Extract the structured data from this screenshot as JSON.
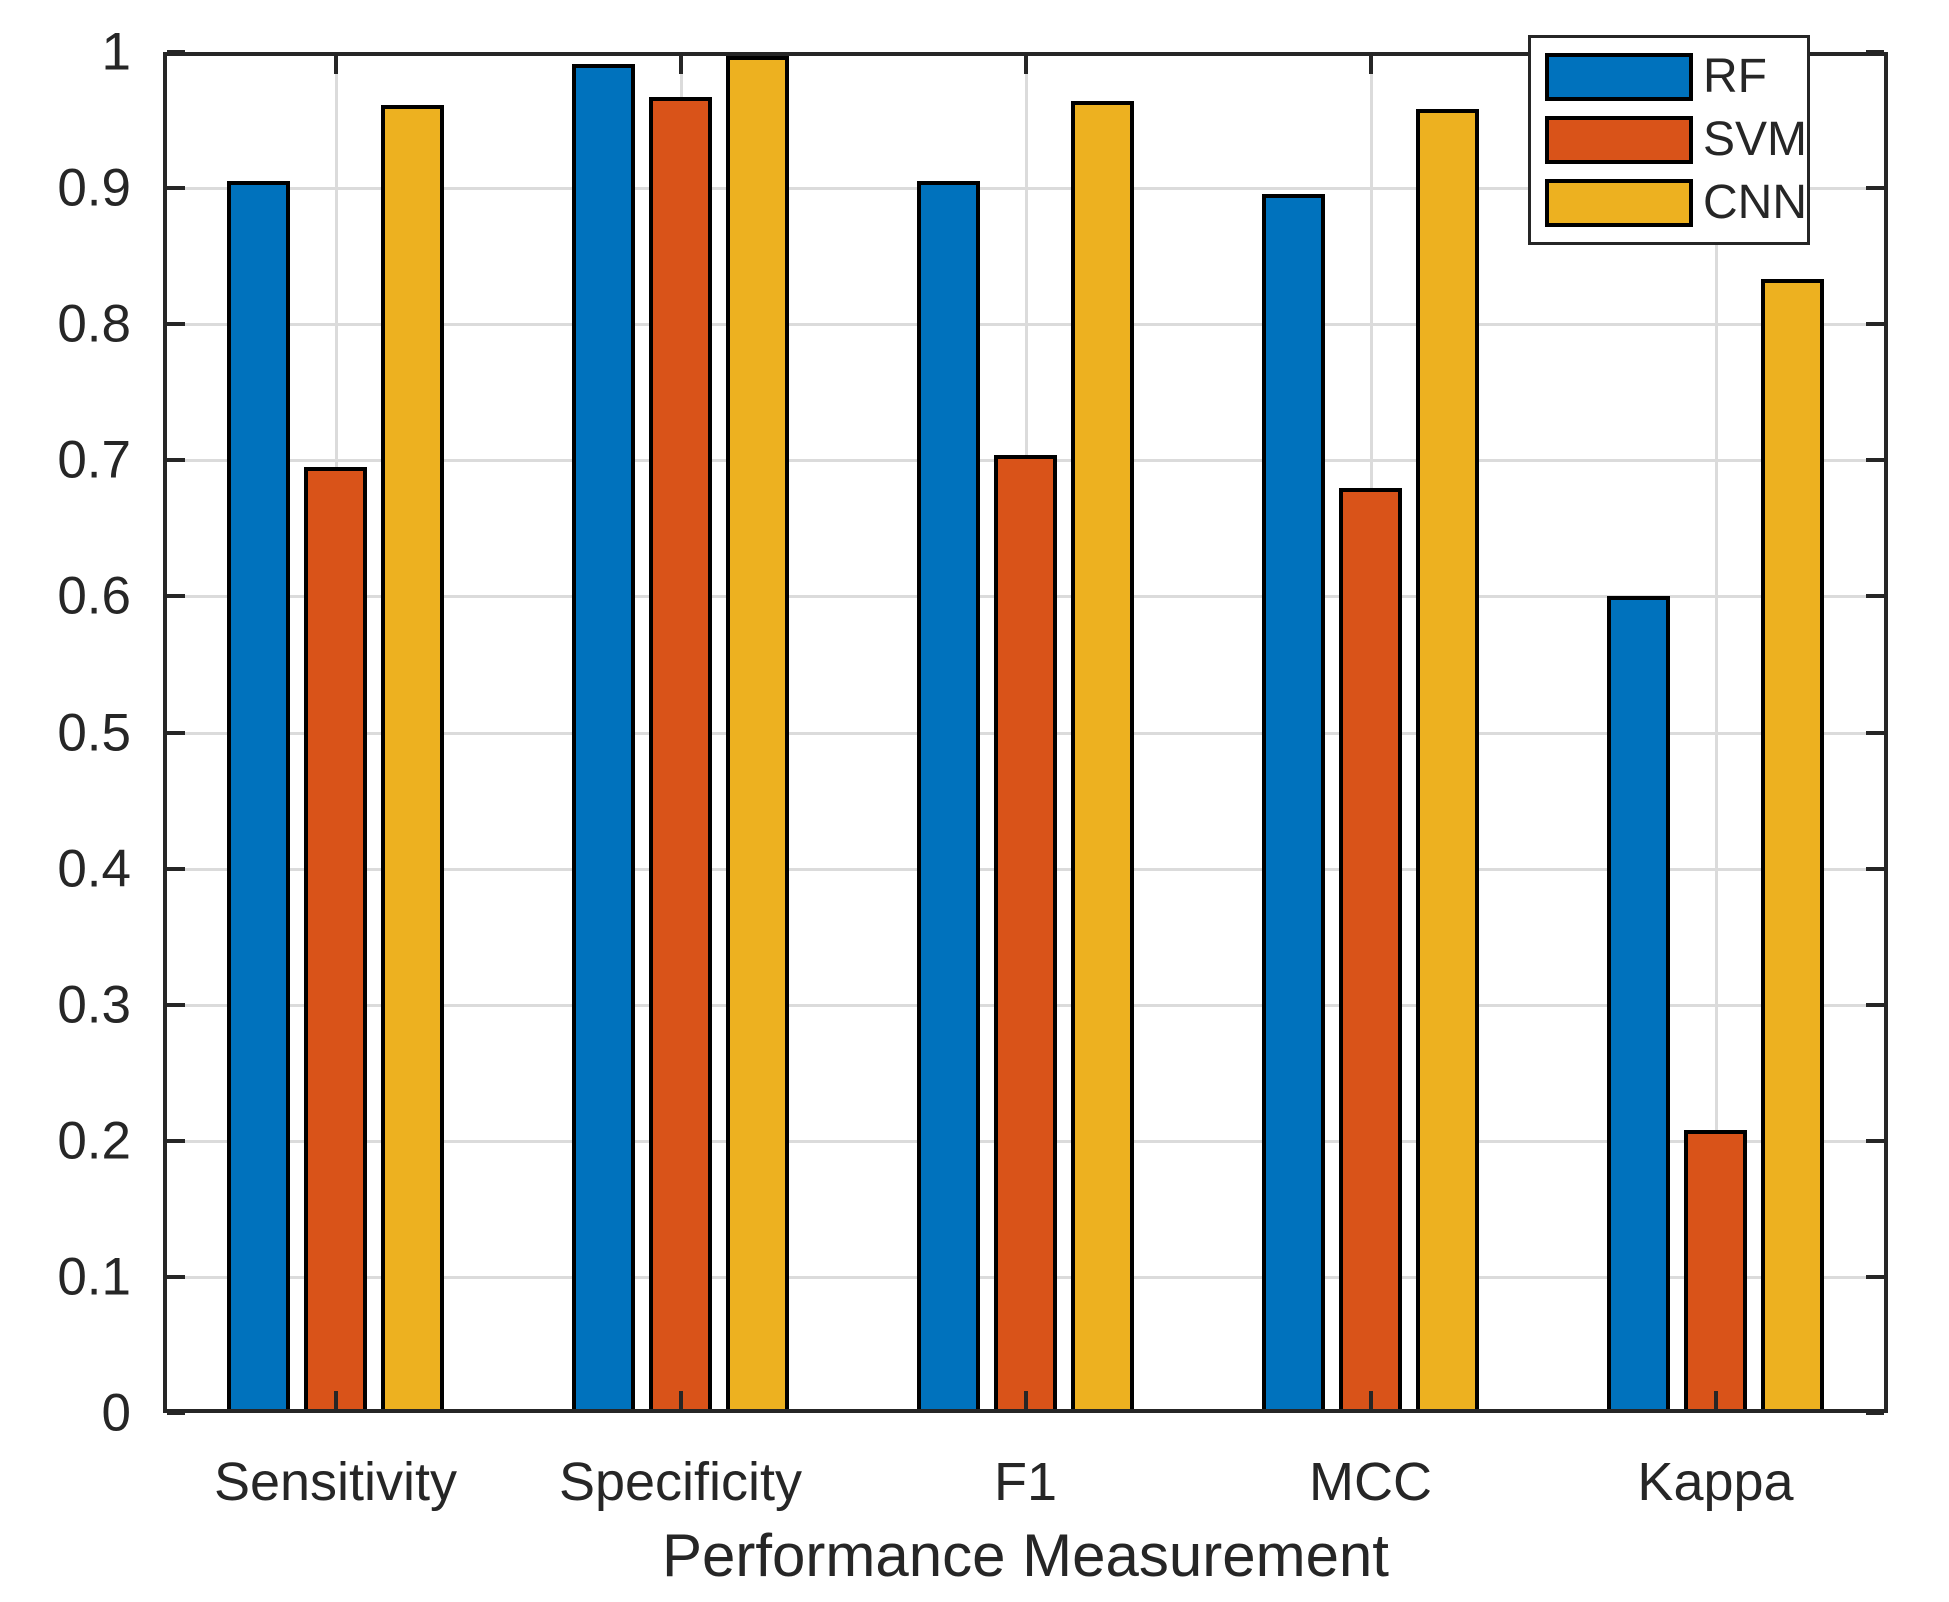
{
  "chart_data": {
    "type": "bar",
    "title": "",
    "xlabel": "Performance Measurement",
    "ylabel": "",
    "categories": [
      "Sensitivity",
      "Specificity",
      "F1",
      "MCC",
      "Kappa"
    ],
    "series": [
      {
        "name": "RF",
        "color": "#0072BD",
        "values": [
          0.905,
          0.991,
          0.905,
          0.896,
          0.6
        ]
      },
      {
        "name": "SVM",
        "color": "#D95319",
        "values": [
          0.695,
          0.967,
          0.704,
          0.68,
          0.208
        ]
      },
      {
        "name": "CNN",
        "color": "#EDB120",
        "values": [
          0.961,
          0.997,
          0.964,
          0.958,
          0.833
        ]
      }
    ],
    "ylim": [
      0,
      1
    ],
    "ytick_step": 0.1,
    "ytick_labels": [
      "0",
      "0.1",
      "0.2",
      "0.3",
      "0.4",
      "0.5",
      "0.6",
      "0.7",
      "0.8",
      "0.9",
      "1"
    ],
    "grid": true,
    "legend_position": "top-right",
    "legend_entries": [
      "RF",
      "SVM",
      "CNN"
    ],
    "colors": {
      "axis": "#262626",
      "grid": "#DBDBDB",
      "text": "#262626",
      "bar_edge": "#000000",
      "background": "#ffffff"
    }
  }
}
